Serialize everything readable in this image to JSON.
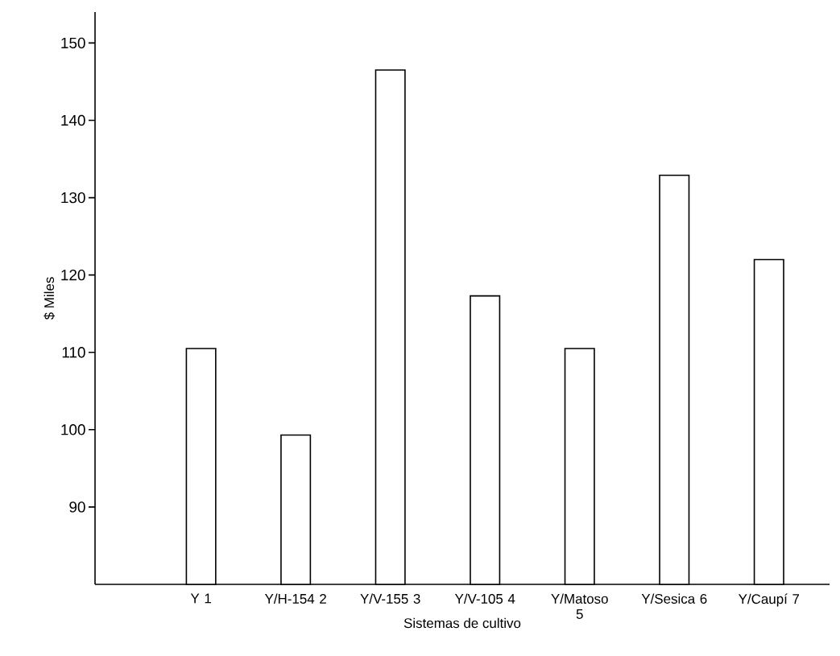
{
  "chart_data": {
    "type": "bar",
    "categories": [
      "Y 1",
      "Y/H-154 2",
      "Y/V-155 3",
      "Y/V-105 4",
      "Y/Matoso 5",
      "Y/Sesica 6",
      "Y/Caupí 7"
    ],
    "values": [
      110.5,
      99.3,
      146.5,
      117.3,
      110.5,
      132.9,
      122
    ],
    "color": "#ffffff",
    "xlabel": "Sistemas de cultivo",
    "ylabel": "$ Miles",
    "ylim": [
      80,
      154
    ],
    "yticks": [
      90,
      100,
      110,
      120,
      130,
      140,
      150
    ],
    "grid": false
  }
}
